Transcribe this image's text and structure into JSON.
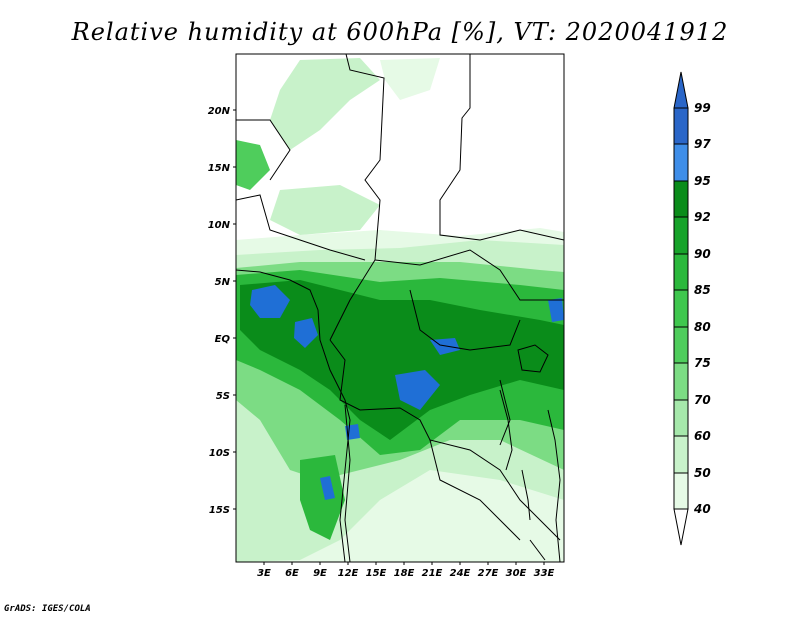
{
  "title": "Relative humidity at 600hPa [%], VT: 2020041912",
  "footer": "GrADS: IGES/COLA",
  "map": {
    "lon_range": [
      0,
      36
    ],
    "lat_range": [
      -20,
      24
    ],
    "lat_labels": [
      "20N",
      "15N",
      "10N",
      "5N",
      "EQ",
      "5S",
      "10S",
      "15S"
    ],
    "lon_labels": [
      "3E",
      "6E",
      "9E",
      "12E",
      "15E",
      "18E",
      "21E",
      "24E",
      "27E",
      "30E",
      "33E"
    ]
  },
  "colorbar": {
    "levels": [
      "99",
      "97",
      "95",
      "92",
      "90",
      "85",
      "80",
      "75",
      "70",
      "60",
      "50",
      "40"
    ],
    "colors": {
      "c95": "#1f6fd6",
      "c97": "#3f8ee8",
      "c99": "#2a66c8",
      "c92": "#0a8c1a",
      "c90": "#17a32a",
      "c85": "#2bb83c",
      "c80": "#4fcd5c",
      "c75": "#7cdc84",
      "c70": "#a6e8ab",
      "c60": "#c8f2ca",
      "c50": "#e6fae6",
      "c40": "#ffffff"
    }
  }
}
